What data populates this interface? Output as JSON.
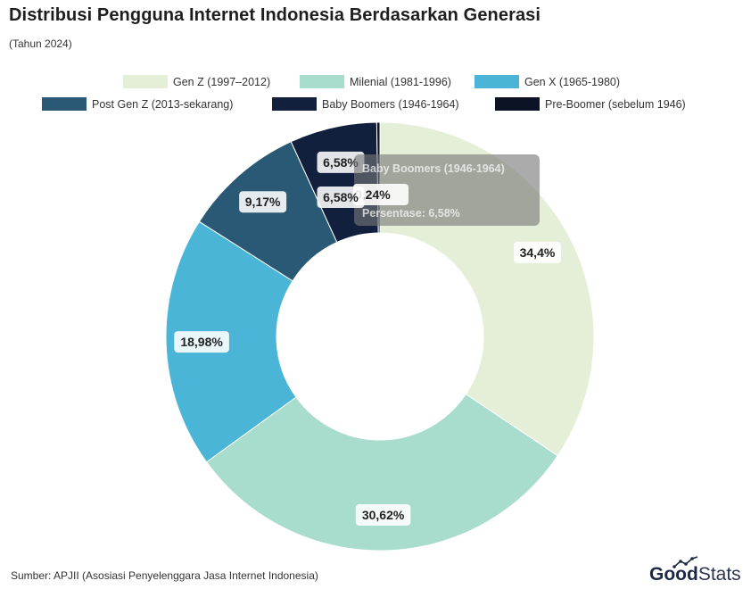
{
  "header": {
    "title": "Distribusi Pengguna Internet Indonesia Berdasarkan Generasi",
    "subtitle": "(Tahun 2024)"
  },
  "footer": {
    "source": "Sumber: APJII (Asosiasi Penyelenggara Jasa Internet Indonesia)",
    "brand_part1": "Good",
    "brand_part2": "Stats"
  },
  "tooltip": {
    "title": "Baby Boomers (1946-1964)",
    "line": "Persentase: 6,58%"
  },
  "chart_data": {
    "type": "pie",
    "donut": true,
    "title": "Distribusi Pengguna Internet Indonesia Berdasarkan Generasi",
    "subtitle": "(Tahun 2024)",
    "legend_position": "top",
    "series": [
      {
        "name": "Gen Z (1997–2012)",
        "value": 34.4,
        "label": "34,4%",
        "color": "#e5efd8"
      },
      {
        "name": "Milenial (1981-1996)",
        "value": 30.62,
        "label": "30,62%",
        "color": "#a8dccd"
      },
      {
        "name": "Gen X (1965-1980)",
        "value": 18.98,
        "label": "18,98%",
        "color": "#4ab5d6"
      },
      {
        "name": "Post Gen Z (2013-sekarang)",
        "value": 9.17,
        "label": "9,17%",
        "color": "#2a5976"
      },
      {
        "name": "Baby Boomers (1946-1964)",
        "value": 6.58,
        "label": "6,58%",
        "color": "#12203d"
      },
      {
        "name": "Pre-Boomer (sebelum 1946)",
        "value": 0.24,
        "label": "0,24%",
        "color": "#0b1324"
      }
    ]
  }
}
